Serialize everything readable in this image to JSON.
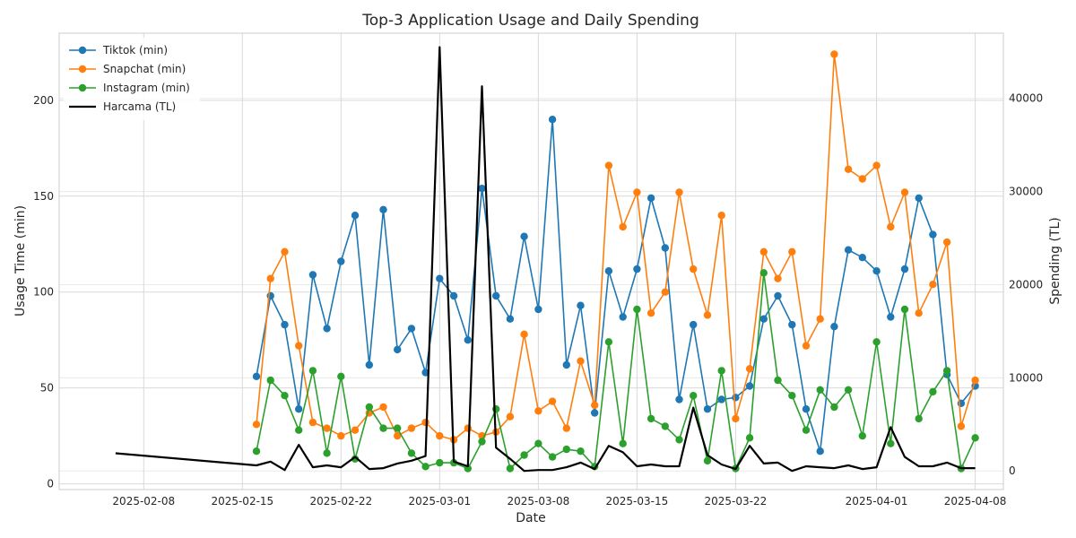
{
  "chart_data": {
    "type": "line",
    "title": "Top-3 Application Usage and Daily Spending",
    "xlabel": "Date",
    "ylabel": "Usage Time (min)",
    "y2label": "Spending (TL)",
    "xlim": [
      "2025-02-02",
      "2025-04-10"
    ],
    "ylim": [
      -3,
      235
    ],
    "y2lim": [
      -2000,
      47000
    ],
    "x_ticks": [
      "2025-02-08",
      "2025-02-15",
      "2025-02-22",
      "2025-03-01",
      "2025-03-08",
      "2025-03-15",
      "2025-03-22",
      "2025-04-01",
      "2025-04-08"
    ],
    "y_ticks": [
      0,
      50,
      100,
      150,
      200
    ],
    "y2_ticks": [
      0,
      10000,
      20000,
      30000,
      40000
    ],
    "grid": true,
    "legend_position": "top-left",
    "usage_dates": [
      "2025-02-16",
      "2025-02-17",
      "2025-02-18",
      "2025-02-19",
      "2025-02-20",
      "2025-02-21",
      "2025-02-22",
      "2025-02-23",
      "2025-02-24",
      "2025-02-25",
      "2025-02-26",
      "2025-02-27",
      "2025-02-28",
      "2025-03-01",
      "2025-03-02",
      "2025-03-03",
      "2025-03-04",
      "2025-03-05",
      "2025-03-06",
      "2025-03-07",
      "2025-03-08",
      "2025-03-09",
      "2025-03-10",
      "2025-03-11",
      "2025-03-12",
      "2025-03-13",
      "2025-03-14",
      "2025-03-15",
      "2025-03-16",
      "2025-03-17",
      "2025-03-18",
      "2025-03-19",
      "2025-03-20",
      "2025-03-21",
      "2025-03-22",
      "2025-03-23",
      "2025-03-24",
      "2025-03-25",
      "2025-03-26",
      "2025-03-27",
      "2025-03-28",
      "2025-03-29",
      "2025-03-30",
      "2025-03-31",
      "2025-04-01",
      "2025-04-02",
      "2025-04-03",
      "2025-04-04",
      "2025-04-05",
      "2025-04-06",
      "2025-04-07",
      "2025-04-08"
    ],
    "series": [
      {
        "name": "Tiktok (min)",
        "color": "#1f77b4",
        "axis": "left",
        "marker": true,
        "values": [
          56,
          98,
          83,
          39,
          109,
          81,
          116,
          140,
          62,
          143,
          70,
          81,
          58,
          107,
          98,
          75,
          154,
          98,
          86,
          129,
          91,
          190,
          62,
          93,
          37,
          111,
          87,
          112,
          149,
          123,
          44,
          83,
          39,
          44,
          45,
          51,
          86,
          98,
          83,
          39,
          17,
          82,
          122,
          118,
          111,
          87,
          112,
          149,
          130,
          57,
          42,
          51
        ]
      },
      {
        "name": "Snapchat (min)",
        "color": "#ff7f0e",
        "axis": "left",
        "marker": true,
        "values": [
          31,
          107,
          121,
          72,
          32,
          29,
          25,
          28,
          37,
          40,
          25,
          29,
          32,
          25,
          23,
          29,
          25,
          27,
          35,
          78,
          38,
          43,
          29,
          64,
          41,
          166,
          134,
          152,
          89,
          100,
          152,
          112,
          88,
          140,
          34,
          60,
          121,
          107,
          121,
          72,
          86,
          224,
          164,
          159,
          166,
          134,
          152,
          89,
          104,
          126,
          30,
          54
        ]
      },
      {
        "name": "Instagram (min)",
        "color": "#2ca02c",
        "axis": "left",
        "marker": true,
        "values": [
          17,
          54,
          46,
          28,
          59,
          16,
          56,
          13,
          40,
          29,
          29,
          16,
          9,
          11,
          11,
          8,
          22,
          39,
          8,
          15,
          21,
          14,
          18,
          17,
          9,
          74,
          21,
          91,
          34,
          30,
          23,
          46,
          12,
          59,
          8,
          24,
          110,
          54,
          46,
          28,
          49,
          40,
          49,
          25,
          74,
          21,
          91,
          34,
          48,
          59,
          8,
          24
        ]
      },
      {
        "name": "Harcama (TL)",
        "color": "#000000",
        "axis": "right",
        "marker": false,
        "dates": [
          "2025-02-06",
          "2025-02-16",
          "2025-02-17",
          "2025-02-18",
          "2025-02-19",
          "2025-02-20",
          "2025-02-21",
          "2025-02-22",
          "2025-02-23",
          "2025-02-24",
          "2025-02-25",
          "2025-02-26",
          "2025-02-27",
          "2025-02-28",
          "2025-03-01",
          "2025-03-02",
          "2025-03-03",
          "2025-03-04",
          "2025-03-05",
          "2025-03-06",
          "2025-03-07",
          "2025-03-08",
          "2025-03-09",
          "2025-03-10",
          "2025-03-11",
          "2025-03-12",
          "2025-03-13",
          "2025-03-14",
          "2025-03-15",
          "2025-03-16",
          "2025-03-17",
          "2025-03-18",
          "2025-03-19",
          "2025-03-20",
          "2025-03-21",
          "2025-03-22",
          "2025-03-23",
          "2025-03-24",
          "2025-03-25",
          "2025-03-26",
          "2025-03-27",
          "2025-03-28",
          "2025-03-29",
          "2025-03-30",
          "2025-03-31",
          "2025-04-01",
          "2025-04-02",
          "2025-04-03",
          "2025-04-04",
          "2025-04-05",
          "2025-04-06",
          "2025-04-07",
          "2025-04-08"
        ],
        "values": [
          1900,
          600,
          1000,
          100,
          2800,
          400,
          600,
          400,
          1500,
          200,
          300,
          800,
          1100,
          1600,
          45500,
          1000,
          500,
          41300,
          2500,
          1300,
          0,
          100,
          100,
          400,
          900,
          200,
          2700,
          2000,
          500,
          700,
          500,
          500,
          6800,
          1700,
          700,
          200,
          2700,
          800,
          900,
          0,
          500,
          400,
          300,
          600,
          200,
          400,
          4700,
          1500,
          500,
          500,
          900,
          300,
          300
        ]
      }
    ]
  }
}
